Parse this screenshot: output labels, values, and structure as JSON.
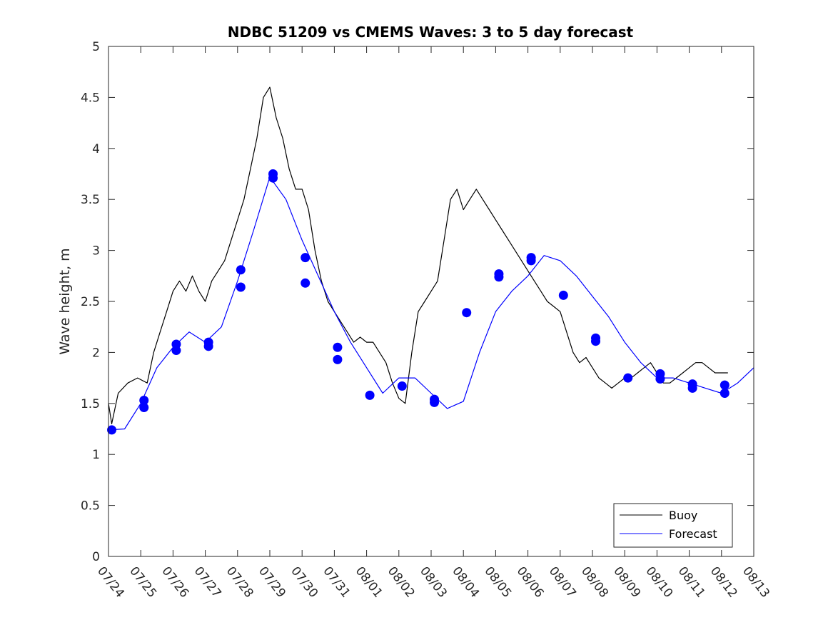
{
  "chart_data": {
    "type": "line",
    "title": "NDBC 51209 vs CMEMS Waves: 3 to 5 day forecast",
    "xlabel": "",
    "ylabel": "Wave height, m",
    "xlim": [
      "07/24",
      "08/13"
    ],
    "ylim": [
      0,
      5
    ],
    "yticks": [
      "0",
      "0.5",
      "1",
      "1.5",
      "2",
      "2.5",
      "3",
      "3.5",
      "4",
      "4.5",
      "5"
    ],
    "xticks": [
      "07/24",
      "07/25",
      "07/26",
      "07/27",
      "07/28",
      "07/29",
      "07/30",
      "07/31",
      "08/01",
      "08/02",
      "08/03",
      "08/04",
      "08/05",
      "08/06",
      "08/07",
      "08/08",
      "08/09",
      "08/10",
      "08/11",
      "08/12",
      "08/13"
    ],
    "legend": {
      "placement": "bottom-right",
      "entries": [
        "Buoy",
        "Forecast"
      ]
    },
    "colors": {
      "buoy": "#000000",
      "forecast": "#0000ff"
    },
    "series": [
      {
        "name": "Buoy",
        "x_days": [
          0,
          0.1,
          0.3,
          0.6,
          0.9,
          1.2,
          1.4,
          1.6,
          1.8,
          2.0,
          2.2,
          2.4,
          2.6,
          2.8,
          3.0,
          3.2,
          3.4,
          3.6,
          3.8,
          4.0,
          4.2,
          4.4,
          4.6,
          4.8,
          5.0,
          5.2,
          5.4,
          5.6,
          5.8,
          6.0,
          6.2,
          6.4,
          6.6,
          6.8,
          7.0,
          7.2,
          7.4,
          7.6,
          7.8,
          8.0,
          8.2,
          8.4,
          8.6,
          8.8,
          9.0,
          9.2,
          9.4,
          9.6,
          9.8,
          10.0,
          10.2,
          10.4,
          10.6,
          10.8,
          11.0,
          11.2,
          11.4,
          11.6,
          11.8,
          12.0,
          12.2,
          12.4,
          12.6,
          12.8,
          13.0,
          13.2,
          13.4,
          13.6,
          13.8,
          14.0,
          14.2,
          14.4,
          14.6,
          14.8,
          15.0,
          15.2,
          15.4,
          15.6,
          15.8,
          16.0,
          16.2,
          16.4,
          16.6,
          16.8,
          17.0,
          17.2,
          17.4,
          17.6,
          17.8,
          18.0,
          18.2,
          18.4,
          18.6,
          18.8,
          19.0,
          19.2
        ],
        "values": [
          1.5,
          1.3,
          1.6,
          1.7,
          1.75,
          1.7,
          2.0,
          2.2,
          2.4,
          2.6,
          2.7,
          2.6,
          2.75,
          2.6,
          2.5,
          2.7,
          2.8,
          2.9,
          3.1,
          3.3,
          3.5,
          3.8,
          4.1,
          4.5,
          4.6,
          4.3,
          4.1,
          3.8,
          3.6,
          3.6,
          3.4,
          3.0,
          2.7,
          2.5,
          2.4,
          2.3,
          2.2,
          2.1,
          2.15,
          2.1,
          2.1,
          2.0,
          1.9,
          1.7,
          1.55,
          1.5,
          2.0,
          2.4,
          2.5,
          2.6,
          2.7,
          3.1,
          3.5,
          3.6,
          3.4,
          3.5,
          3.6,
          3.5,
          3.4,
          3.3,
          3.2,
          3.1,
          3.0,
          2.9,
          2.8,
          2.7,
          2.6,
          2.5,
          2.45,
          2.4,
          2.2,
          2.0,
          1.9,
          1.95,
          1.85,
          1.75,
          1.7,
          1.65,
          1.7,
          1.75,
          1.75,
          1.8,
          1.85,
          1.9,
          1.8,
          1.7,
          1.7,
          1.75,
          1.8,
          1.85,
          1.9,
          1.9,
          1.85,
          1.8,
          1.8,
          1.8
        ]
      },
      {
        "name": "Forecast",
        "x_days": [
          0,
          0.5,
          1.0,
          1.5,
          2.0,
          2.5,
          3.0,
          3.5,
          4.0,
          4.5,
          5.0,
          5.5,
          6.0,
          6.5,
          7.0,
          7.5,
          8.0,
          8.5,
          9.0,
          9.5,
          10.0,
          10.5,
          11.0,
          11.5,
          12.0,
          12.5,
          13.0,
          13.5,
          14.0,
          14.5,
          15.0,
          15.5,
          16.0,
          16.5,
          17.0,
          17.5,
          18.0,
          18.5,
          19.0,
          19.5,
          20.0
        ],
        "values": [
          1.24,
          1.25,
          1.5,
          1.85,
          2.05,
          2.2,
          2.1,
          2.25,
          2.7,
          3.2,
          3.72,
          3.5,
          3.1,
          2.75,
          2.4,
          2.1,
          1.85,
          1.6,
          1.75,
          1.75,
          1.6,
          1.45,
          1.52,
          2.0,
          2.4,
          2.6,
          2.75,
          2.95,
          2.9,
          2.75,
          2.55,
          2.35,
          2.1,
          1.9,
          1.75,
          1.75,
          1.7,
          1.65,
          1.6,
          1.7,
          1.85
        ]
      }
    ],
    "markers": {
      "x_days": [
        0.1,
        1.1,
        1.1,
        2.1,
        2.1,
        3.1,
        3.1,
        4.1,
        4.1,
        5.1,
        5.1,
        6.1,
        6.1,
        7.1,
        7.1,
        8.1,
        9.1,
        10.1,
        10.1,
        11.1,
        12.1,
        12.1,
        13.1,
        13.1,
        14.1,
        15.1,
        15.1,
        16.1,
        17.1,
        17.1,
        18.1,
        18.1,
        19.1,
        19.1
      ],
      "values": [
        1.24,
        1.53,
        1.46,
        2.08,
        2.02,
        2.1,
        2.06,
        2.81,
        2.64,
        3.75,
        3.71,
        2.93,
        2.68,
        2.05,
        1.93,
        1.58,
        1.67,
        1.54,
        1.51,
        2.39,
        2.77,
        2.74,
        2.93,
        2.9,
        2.56,
        2.14,
        2.11,
        1.75,
        1.79,
        1.74,
        1.69,
        1.65,
        1.68,
        1.6
      ]
    }
  }
}
